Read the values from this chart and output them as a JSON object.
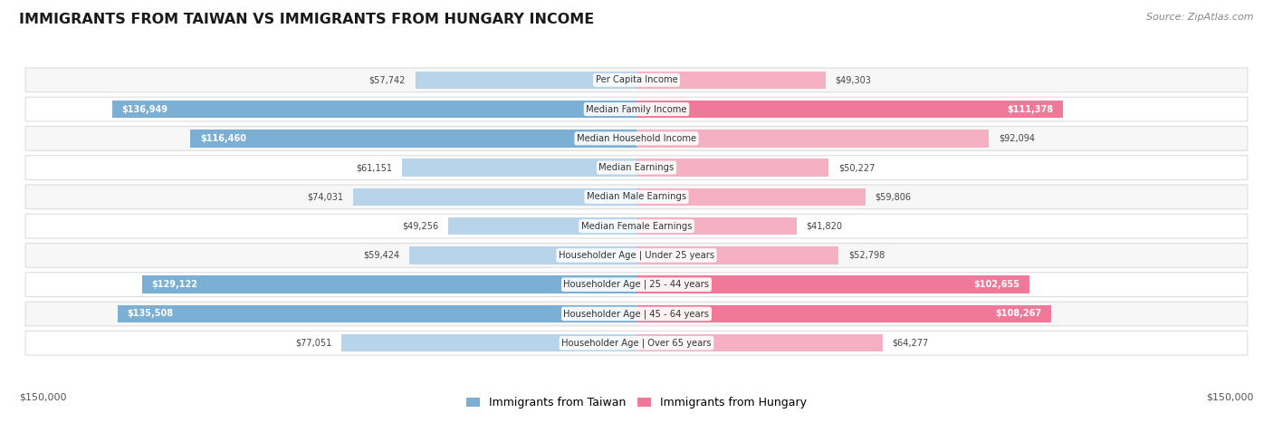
{
  "title": "IMMIGRANTS FROM TAIWAN VS IMMIGRANTS FROM HUNGARY INCOME",
  "source": "Source: ZipAtlas.com",
  "categories": [
    "Per Capita Income",
    "Median Family Income",
    "Median Household Income",
    "Median Earnings",
    "Median Male Earnings",
    "Median Female Earnings",
    "Householder Age | Under 25 years",
    "Householder Age | 25 - 44 years",
    "Householder Age | 45 - 64 years",
    "Householder Age | Over 65 years"
  ],
  "taiwan_values": [
    57742,
    136949,
    116460,
    61151,
    74031,
    49256,
    59424,
    129122,
    135508,
    77051
  ],
  "hungary_values": [
    49303,
    111378,
    92094,
    50227,
    59806,
    41820,
    52798,
    102655,
    108267,
    64277
  ],
  "taiwan_labels": [
    "$57,742",
    "$136,949",
    "$116,460",
    "$61,151",
    "$74,031",
    "$49,256",
    "$59,424",
    "$129,122",
    "$135,508",
    "$77,051"
  ],
  "hungary_labels": [
    "$49,303",
    "$111,378",
    "$92,094",
    "$50,227",
    "$59,806",
    "$41,820",
    "$52,798",
    "$102,655",
    "$108,267",
    "$64,277"
  ],
  "taiwan_color_full": "#7bafd4",
  "taiwan_color_light": "#b8d4ea",
  "hungary_color_full": "#f07898",
  "hungary_color_light": "#f5b0c4",
  "max_value": 150000,
  "x_label_left": "$150,000",
  "x_label_right": "$150,000",
  "legend_taiwan": "Immigrants from Taiwan",
  "legend_hungary": "Immigrants from Hungary",
  "background_color": "#ffffff",
  "row_bg_odd": "#f7f7f7",
  "row_bg_even": "#ffffff",
  "full_threshold": 100000,
  "border_color": "#dddddd"
}
